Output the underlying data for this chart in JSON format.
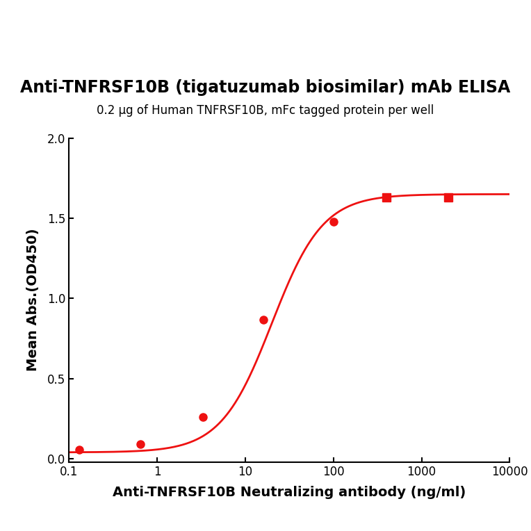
{
  "title": "Anti-TNFRSF10B (tigatuzumab biosimilar) mAb ELISA",
  "subtitle": "0.2 μg of Human TNFRSF10B, mFc tagged protein per well",
  "xlabel": "Anti-TNFRSF10B Neutralizing antibody (ng/ml)",
  "ylabel": "Mean Abs.(OD450)",
  "x_data": [
    0.13,
    0.65,
    3.3,
    16,
    100,
    400,
    2000
  ],
  "y_data": [
    0.055,
    0.09,
    0.26,
    0.865,
    1.48,
    1.63,
    1.63
  ],
  "marker_style_circle": [
    0,
    1,
    2,
    3,
    4
  ],
  "marker_style_square": [
    5,
    6
  ],
  "line_color": "#EE1111",
  "marker_color": "#EE1111",
  "xlim_log": [
    0.1,
    10000
  ],
  "ylim": [
    -0.02,
    2.0
  ],
  "yticks": [
    0.0,
    0.5,
    1.0,
    1.5,
    2.0
  ],
  "xticks": [
    0.1,
    1,
    10,
    100,
    1000,
    10000
  ],
  "xtick_labels": [
    "0.1",
    "1",
    "10",
    "100",
    "1000",
    "10000"
  ],
  "title_fontsize": 17,
  "subtitle_fontsize": 12,
  "axis_label_fontsize": 14,
  "tick_fontsize": 12,
  "background_color": "#ffffff",
  "fig_background_color": "#ffffff"
}
